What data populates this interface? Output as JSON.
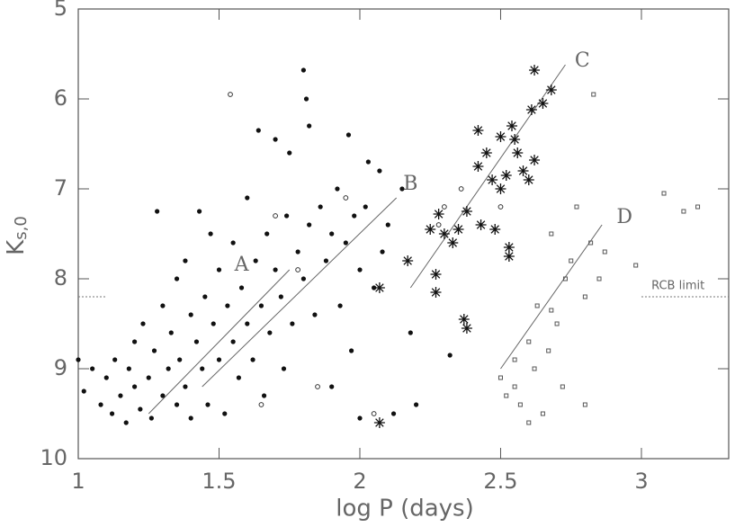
{
  "chart_data": {
    "type": "scatter",
    "xlabel": "log P (days)",
    "ylabel": {
      "base": "K",
      "sub": "s,0"
    },
    "xlim": [
      1,
      3.31
    ],
    "ylim": [
      10,
      5
    ],
    "xticks": [
      1,
      1.5,
      2,
      2.5,
      3
    ],
    "yticks": [
      5,
      6,
      7,
      8,
      9,
      10
    ],
    "series": [
      {
        "marker": "dot",
        "color": "#111111",
        "x": [
          1.02,
          1.05,
          1.08,
          1.1,
          1.12,
          1.13,
          1.15,
          1.17,
          1.18,
          1.2,
          1.2,
          1.22,
          1.23,
          1.25,
          1.26,
          1.27,
          1.28,
          1.3,
          1.3,
          1.32,
          1.33,
          1.35,
          1.35,
          1.36,
          1.38,
          1.38,
          1.4,
          1.4,
          1.42,
          1.43,
          1.44,
          1.45,
          1.46,
          1.47,
          1.48,
          1.5,
          1.5,
          1.52,
          1.53,
          1.55,
          1.55,
          1.57,
          1.58,
          1.6,
          1.6,
          1.62,
          1.63,
          1.64,
          1.65,
          1.66,
          1.67,
          1.68,
          1.7,
          1.7,
          1.72,
          1.73,
          1.74,
          1.75,
          1.76,
          1.78,
          1.8,
          1.8,
          1.81,
          1.82,
          1.82,
          1.84,
          1.86,
          1.88,
          1.9,
          1.9,
          1.92,
          1.93,
          1.95,
          1.96,
          1.97,
          1.98,
          2.0,
          2.0,
          2.02,
          2.03,
          2.05,
          2.07,
          2.08,
          2.1,
          2.12,
          2.15,
          2.18,
          2.2,
          2.32,
          1.0
        ],
        "y": [
          9.25,
          9.0,
          9.4,
          9.1,
          9.5,
          8.9,
          9.3,
          9.6,
          9.0,
          9.2,
          8.7,
          9.45,
          8.5,
          9.1,
          9.55,
          8.8,
          7.25,
          9.3,
          8.3,
          9.0,
          8.6,
          9.4,
          8.0,
          8.9,
          7.8,
          9.2,
          8.4,
          9.55,
          8.7,
          7.25,
          9.0,
          8.2,
          9.4,
          7.5,
          8.5,
          8.9,
          7.9,
          9.5,
          8.3,
          8.7,
          7.6,
          9.1,
          8.1,
          8.5,
          7.1,
          8.9,
          7.8,
          6.35,
          8.3,
          9.3,
          7.5,
          8.6,
          7.9,
          6.45,
          8.2,
          9.0,
          7.3,
          6.6,
          8.5,
          7.7,
          5.68,
          8.0,
          6.0,
          6.3,
          7.4,
          8.4,
          7.2,
          7.8,
          7.5,
          9.2,
          7.0,
          8.3,
          7.6,
          6.4,
          8.8,
          7.3,
          9.55,
          7.9,
          7.2,
          6.7,
          8.1,
          6.8,
          7.7,
          7.4,
          9.5,
          7.0,
          8.6,
          9.4,
          8.85,
          8.9
        ]
      },
      {
        "marker": "circle",
        "color": "#333333",
        "x": [
          1.54,
          1.7,
          1.95,
          1.65,
          2.05,
          1.85,
          2.28,
          2.3,
          2.36,
          1.78,
          2.5
        ],
        "y": [
          5.95,
          7.3,
          7.1,
          9.4,
          9.5,
          9.2,
          7.4,
          7.2,
          7.0,
          7.9,
          7.2
        ]
      },
      {
        "marker": "asterisk",
        "color": "#111111",
        "x": [
          2.07,
          2.07,
          2.17,
          2.25,
          2.27,
          2.27,
          2.28,
          2.3,
          2.33,
          2.35,
          2.37,
          2.38,
          2.42,
          2.42,
          2.43,
          2.45,
          2.47,
          2.48,
          2.5,
          2.5,
          2.52,
          2.53,
          2.54,
          2.55,
          2.56,
          2.58,
          2.6,
          2.61,
          2.62,
          2.62,
          2.65,
          2.68,
          2.38,
          2.53
        ],
        "y": [
          9.6,
          8.1,
          7.8,
          7.45,
          8.15,
          7.95,
          7.28,
          7.5,
          7.6,
          7.45,
          8.45,
          7.25,
          6.35,
          6.75,
          7.4,
          6.6,
          6.9,
          7.45,
          6.42,
          7.0,
          6.85,
          7.65,
          6.3,
          6.45,
          6.6,
          6.8,
          6.9,
          6.12,
          5.68,
          6.68,
          6.05,
          5.9,
          8.55,
          7.75
        ]
      },
      {
        "marker": "square",
        "color": "#555555",
        "x": [
          2.5,
          2.52,
          2.55,
          2.57,
          2.6,
          2.62,
          2.63,
          2.65,
          2.67,
          2.68,
          2.7,
          2.72,
          2.73,
          2.75,
          2.77,
          2.8,
          2.82,
          2.83,
          2.85,
          2.87,
          2.8,
          2.98,
          3.08,
          3.15,
          3.2,
          2.6,
          2.55,
          2.68
        ],
        "y": [
          9.1,
          9.3,
          9.2,
          9.4,
          8.7,
          9.0,
          8.3,
          9.5,
          8.8,
          7.5,
          8.5,
          9.2,
          8.0,
          7.8,
          7.2,
          8.2,
          7.6,
          5.95,
          8.0,
          7.7,
          9.4,
          7.85,
          7.05,
          7.25,
          7.2,
          9.6,
          8.9,
          8.35
        ]
      }
    ],
    "lines": [
      {
        "label": "A",
        "x": [
          1.25,
          1.75
        ],
        "y": [
          9.5,
          7.9
        ],
        "label_x": 1.58,
        "label_y": 7.85
      },
      {
        "label": "B",
        "x": [
          1.44,
          2.13
        ],
        "y": [
          9.2,
          7.1
        ],
        "label_x": 2.18,
        "label_y": 6.95
      },
      {
        "label": "C",
        "x": [
          2.18,
          2.73
        ],
        "y": [
          8.1,
          5.62
        ],
        "label_x": 2.79,
        "label_y": 5.58
      },
      {
        "label": "D",
        "x": [
          2.5,
          2.86
        ],
        "y": [
          9.0,
          7.4
        ],
        "label_x": 2.94,
        "label_y": 7.32
      }
    ],
    "rcb": {
      "label": "RCB limit",
      "y": 8.2,
      "x": [
        [
          1,
          1.1
        ],
        [
          3.0,
          3.31
        ]
      ],
      "label_x": 3.13,
      "label_y": 8.08
    }
  }
}
